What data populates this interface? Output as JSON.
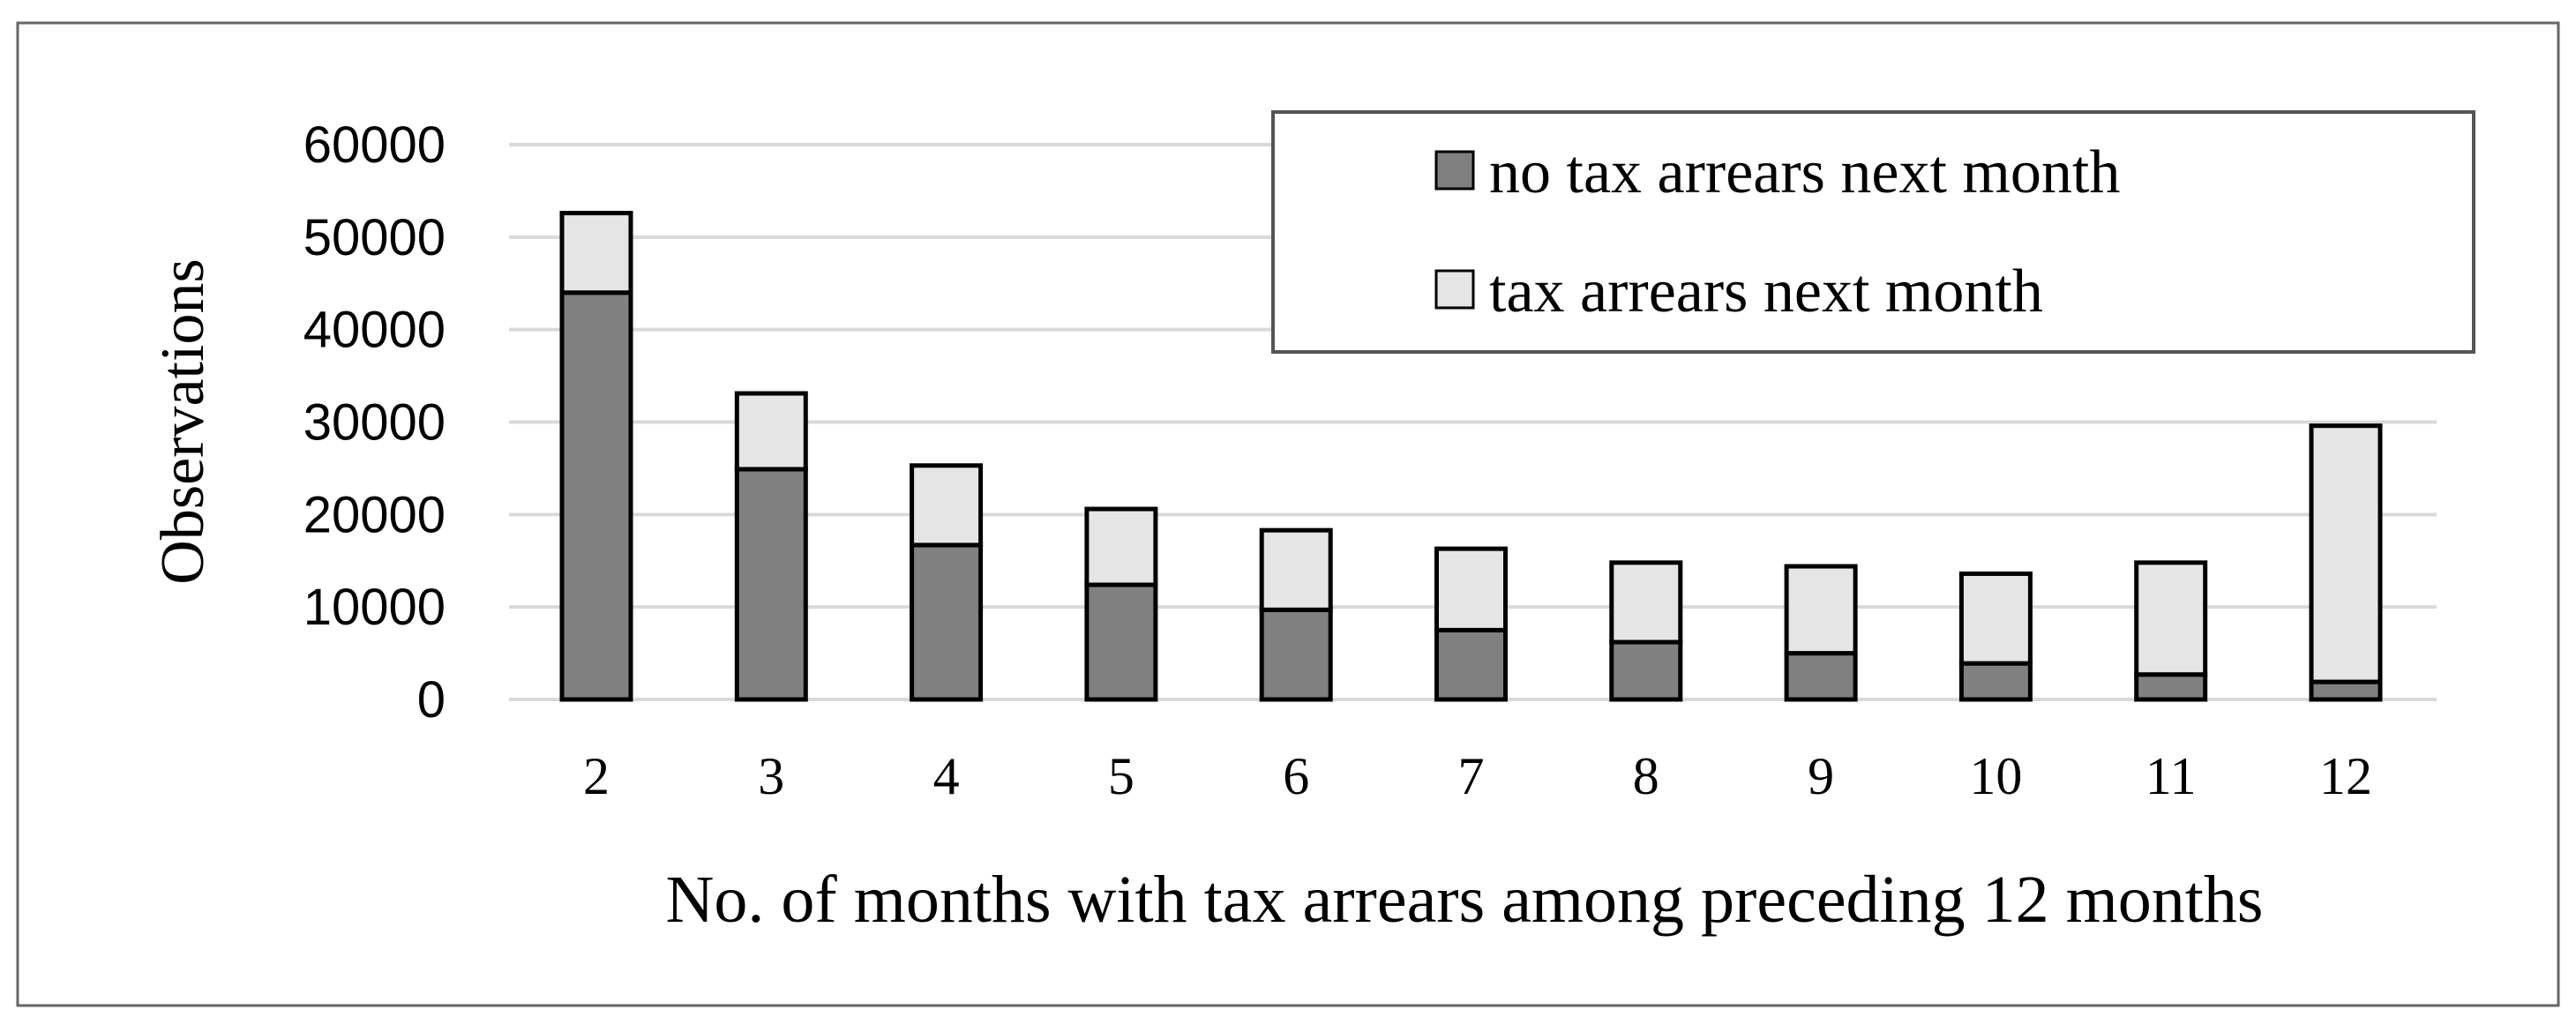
{
  "chart_data": {
    "type": "bar",
    "stacked": true,
    "title": "",
    "xlabel": "No. of months with tax arrears among preceding 12 months",
    "ylabel": "Observations",
    "categories": [
      "2",
      "3",
      "4",
      "5",
      "6",
      "7",
      "8",
      "9",
      "10",
      "11",
      "12"
    ],
    "ylim": [
      0,
      60000
    ],
    "yticks": [
      "0",
      "10000",
      "20000",
      "30000",
      "40000",
      "50000",
      "60000"
    ],
    "grid": true,
    "legend_position": "top-right",
    "series": [
      {
        "name": "no tax arrears next month",
        "color": "#808080",
        "values": [
          44000,
          24900,
          16700,
          12400,
          9700,
          7500,
          6200,
          5000,
          3900,
          2700,
          1900
        ]
      },
      {
        "name": "tax arrears next month",
        "color": "#e5e5e5",
        "values": [
          8600,
          8200,
          8600,
          8200,
          8600,
          8800,
          8600,
          9400,
          9700,
          12100,
          27700
        ]
      }
    ]
  }
}
